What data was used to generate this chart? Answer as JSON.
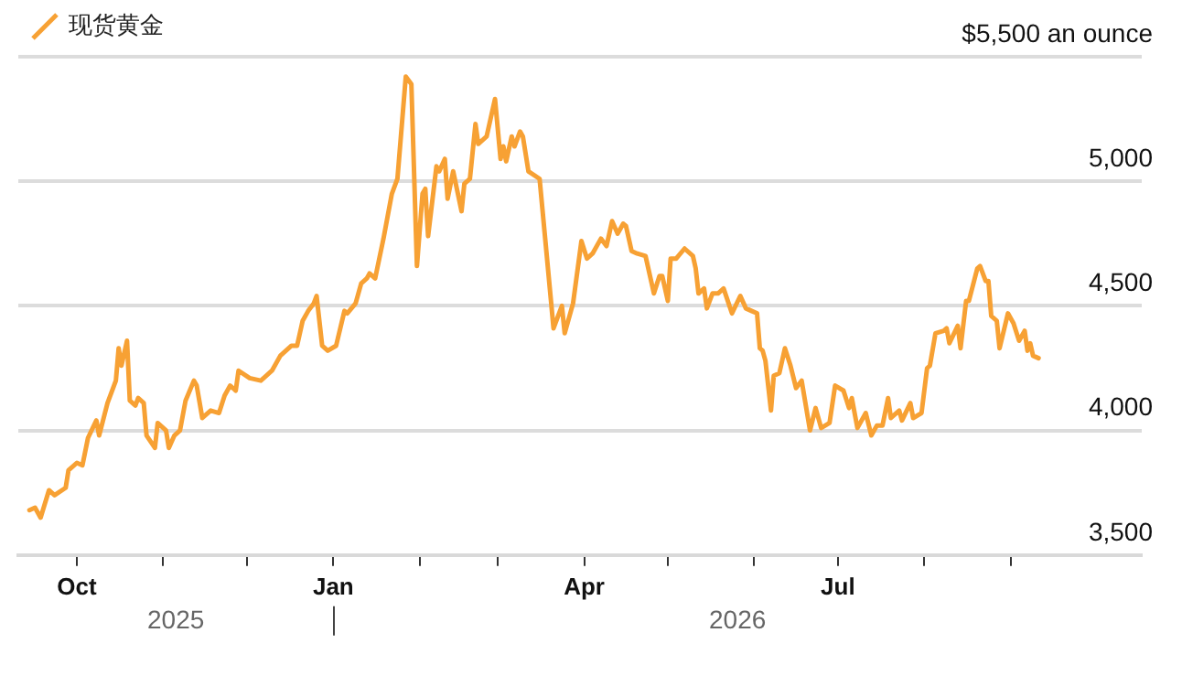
{
  "chart_data": {
    "type": "line",
    "legend": "top left",
    "grid": "y",
    "marker": "none",
    "line_style": "solid",
    "xlim": [
      "2025-09-10",
      "2026-10-18"
    ],
    "xticks": [
      {
        "value": "2025-10-01",
        "label": "Oct"
      },
      {
        "value": "2025-11-01",
        "label": null
      },
      {
        "value": "2025-12-01",
        "label": null
      },
      {
        "value": "2026-01-01",
        "label": "Jan"
      },
      {
        "value": "2026-02-01",
        "label": null
      },
      {
        "value": "2026-03-01",
        "label": null
      },
      {
        "value": "2026-04-01",
        "label": "Apr"
      },
      {
        "value": "2026-05-01",
        "label": null
      },
      {
        "value": "2026-06-01",
        "label": null
      },
      {
        "value": "2026-07-01",
        "label": "Jul"
      },
      {
        "value": "2026-08-01",
        "label": null
      },
      {
        "value": "2026-09-01",
        "label": null
      }
    ],
    "ylim": [
      3500,
      5500
    ],
    "yticks": [
      {
        "value": 3500,
        "label": "3,500"
      },
      {
        "value": 4000,
        "label": "4,000"
      },
      {
        "value": 4500,
        "label": "4,500"
      },
      {
        "value": 5000,
        "label": "5,000"
      },
      {
        "value": 5500,
        "label": "$5,500 an ounce"
      }
    ],
    "annotations": [
      "2025",
      "2026"
    ],
    "series": [
      {
        "name": "现货黄金",
        "color": "#f7a134",
        "x": [
          "2025-09-14",
          "2025-09-16",
          "2025-09-18",
          "2025-09-21",
          "2025-09-23",
          "2025-09-27",
          "2025-09-28",
          "2025-10-01",
          "2025-10-03",
          "2025-10-05",
          "2025-10-08",
          "2025-10-09",
          "2025-10-12",
          "2025-10-15",
          "2025-10-16",
          "2025-10-17",
          "2025-10-19",
          "2025-10-20",
          "2025-10-22",
          "2025-10-23",
          "2025-10-25",
          "2025-10-26",
          "2025-10-29",
          "2025-10-30",
          "2025-11-02",
          "2025-11-03",
          "2025-11-05",
          "2025-11-07",
          "2025-11-09",
          "2025-11-12",
          "2025-11-13",
          "2025-11-15",
          "2025-11-18",
          "2025-11-21",
          "2025-11-23",
          "2025-11-25",
          "2025-11-27",
          "2025-11-28",
          "2025-12-02",
          "2025-12-06",
          "2025-12-10",
          "2025-12-13",
          "2025-12-17",
          "2025-12-19",
          "2025-12-21",
          "2025-12-23",
          "2025-12-25",
          "2025-12-26",
          "2025-12-28",
          "2025-12-30",
          "2026-01-02",
          "2026-01-05",
          "2026-01-06",
          "2026-01-09",
          "2026-01-11",
          "2026-01-13",
          "2026-01-14",
          "2026-01-16",
          "2026-01-19",
          "2026-01-22",
          "2026-01-24",
          "2026-01-27",
          "2026-01-29",
          "2026-01-31",
          "2026-02-02",
          "2026-02-03",
          "2026-02-04",
          "2026-02-07",
          "2026-02-08",
          "2026-02-10",
          "2026-02-11",
          "2026-02-13",
          "2026-02-16",
          "2026-02-17",
          "2026-02-19",
          "2026-02-21",
          "2026-02-22",
          "2026-02-25",
          "2026-02-28",
          "2026-03-02",
          "2026-03-03",
          "2026-03-04",
          "2026-03-06",
          "2026-03-07",
          "2026-03-09",
          "2026-03-10",
          "2026-03-12",
          "2026-03-16",
          "2026-03-21",
          "2026-03-24",
          "2026-03-25",
          "2026-03-28",
          "2026-03-31",
          "2026-04-02",
          "2026-04-04",
          "2026-04-07",
          "2026-04-09",
          "2026-04-11",
          "2026-04-13",
          "2026-04-15",
          "2026-04-16",
          "2026-04-18",
          "2026-04-20",
          "2026-04-23",
          "2026-04-26",
          "2026-04-28",
          "2026-04-29",
          "2026-05-01",
          "2026-05-02",
          "2026-05-04",
          "2026-05-07",
          "2026-05-10",
          "2026-05-11",
          "2026-05-12",
          "2026-05-14",
          "2026-05-15",
          "2026-05-17",
          "2026-05-19",
          "2026-05-21",
          "2026-05-24",
          "2026-05-27",
          "2026-05-29",
          "2026-05-31",
          "2026-06-02",
          "2026-06-03",
          "2026-06-04",
          "2026-06-05",
          "2026-06-07",
          "2026-06-08",
          "2026-06-10",
          "2026-06-12",
          "2026-06-14",
          "2026-06-16",
          "2026-06-18",
          "2026-06-21",
          "2026-06-23",
          "2026-06-25",
          "2026-06-28",
          "2026-06-30",
          "2026-07-03",
          "2026-07-05",
          "2026-07-06",
          "2026-07-08",
          "2026-07-11",
          "2026-07-13",
          "2026-07-15",
          "2026-07-17",
          "2026-07-19",
          "2026-07-20",
          "2026-07-23",
          "2026-07-24",
          "2026-07-27",
          "2026-07-28",
          "2026-07-31",
          "2026-08-02",
          "2026-08-03",
          "2026-08-05",
          "2026-08-08",
          "2026-08-09",
          "2026-08-10",
          "2026-08-13",
          "2026-08-14",
          "2026-08-16",
          "2026-08-17",
          "2026-08-20",
          "2026-08-21",
          "2026-08-23",
          "2026-08-24",
          "2026-08-25",
          "2026-08-27",
          "2026-08-28",
          "2026-08-31",
          "2026-09-02",
          "2026-09-04",
          "2026-09-06",
          "2026-09-07",
          "2026-09-08",
          "2026-09-09",
          "2026-09-11"
        ],
        "values": [
          3680,
          3690,
          3650,
          3760,
          3740,
          3770,
          3840,
          3870,
          3860,
          3970,
          4040,
          3980,
          4110,
          4200,
          4330,
          4260,
          4360,
          4120,
          4100,
          4130,
          4110,
          3980,
          3930,
          4030,
          4000,
          3930,
          3980,
          4000,
          4120,
          4200,
          4180,
          4050,
          4080,
          4070,
          4140,
          4180,
          4160,
          4240,
          4210,
          4200,
          4240,
          4300,
          4340,
          4340,
          4440,
          4480,
          4510,
          4540,
          4340,
          4320,
          4340,
          4480,
          4470,
          4510,
          4590,
          4610,
          4630,
          4610,
          4770,
          4950,
          5010,
          5420,
          5390,
          4660,
          4950,
          4970,
          4780,
          5060,
          5040,
          5090,
          4930,
          5040,
          4880,
          4990,
          5010,
          5230,
          5150,
          5180,
          5330,
          5090,
          5140,
          5080,
          5180,
          5140,
          5200,
          5180,
          5040,
          5010,
          4410,
          4500,
          4390,
          4510,
          4760,
          4690,
          4710,
          4770,
          4740,
          4840,
          4790,
          4830,
          4820,
          4720,
          4710,
          4700,
          4550,
          4620,
          4620,
          4520,
          4690,
          4690,
          4730,
          4700,
          4650,
          4550,
          4570,
          4490,
          4550,
          4550,
          4570,
          4470,
          4540,
          4490,
          4480,
          4470,
          4330,
          4320,
          4280,
          4080,
          4220,
          4230,
          4330,
          4260,
          4170,
          4200,
          4000,
          4090,
          4010,
          4030,
          4180,
          4160,
          4090,
          4130,
          4010,
          4070,
          3980,
          4020,
          4020,
          4130,
          4050,
          4080,
          4040,
          4110,
          4050,
          4070,
          4250,
          4260,
          4390,
          4400,
          4410,
          4350,
          4420,
          4330,
          4520,
          4520,
          4650,
          4660,
          4600,
          4600,
          4460,
          4440,
          4330,
          4470,
          4430,
          4360,
          4400,
          4320,
          4350,
          4300,
          4290
        ]
      }
    ]
  }
}
